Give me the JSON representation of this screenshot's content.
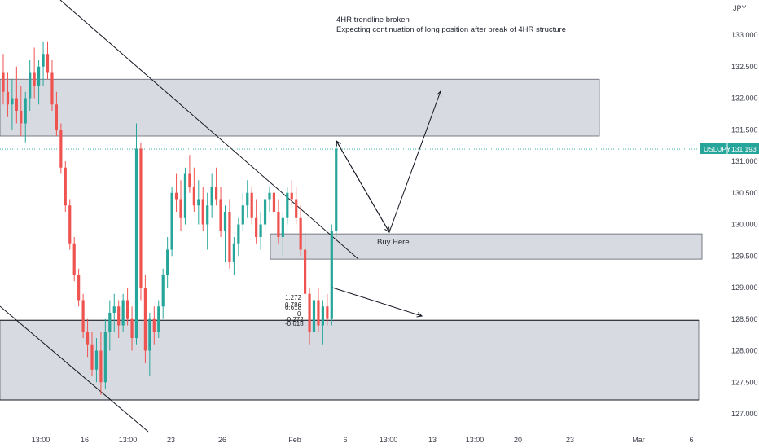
{
  "chart_data": {
    "type": "candlestick",
    "symbol": "USDJPY",
    "currency": "JPY",
    "last_price": "131.193",
    "colors": {
      "up": "#26a69a",
      "down": "#ef5350",
      "zone": "#d1d4dc",
      "price_line": "#26a69a"
    },
    "y_ticks": [
      "133.000",
      "132.500",
      "132.000",
      "131.500",
      "131.000",
      "130.500",
      "130.000",
      "129.500",
      "129.000",
      "128.500",
      "128.000",
      "127.500",
      "127.000"
    ],
    "x_ticks": [
      "13:00",
      "16",
      "13:00",
      "23",
      "26",
      "Feb",
      "6",
      "13:00",
      "13",
      "13:00",
      "20",
      "23",
      "Mar",
      "6"
    ],
    "annotations": {
      "line1": "4HR trendline broken",
      "line2": "Expecting continuation of long position after break of 4HR structure",
      "buy_label": "Buy Here"
    },
    "fib_labels": [
      "1.272",
      "0.786",
      "0.618",
      "0",
      "-0.272",
      "-0.618"
    ],
    "zones": [
      {
        "name": "resistance-zone",
        "from": 131.4,
        "to": 132.3
      },
      {
        "name": "buy-zone",
        "from": 129.45,
        "to": 129.85
      },
      {
        "name": "support-zone",
        "from": 127.22,
        "to": 128.48
      }
    ],
    "candles": [
      [
        132.4,
        132.7,
        131.9,
        132.1
      ],
      [
        132.1,
        132.4,
        131.7,
        131.9
      ],
      [
        131.9,
        132.3,
        131.5,
        132.0
      ],
      [
        132.0,
        132.5,
        131.6,
        131.8
      ],
      [
        131.8,
        132.2,
        131.4,
        131.6
      ],
      [
        131.6,
        132.1,
        131.3,
        132.0
      ],
      [
        132.0,
        132.6,
        131.8,
        132.4
      ],
      [
        132.4,
        132.8,
        132.0,
        132.2
      ],
      [
        132.2,
        132.6,
        131.9,
        132.5
      ],
      [
        132.5,
        132.9,
        132.2,
        132.7
      ],
      [
        132.7,
        132.9,
        132.3,
        132.4
      ],
      [
        132.4,
        132.6,
        131.8,
        131.9
      ],
      [
        131.9,
        132.1,
        131.4,
        131.5
      ],
      [
        131.5,
        131.6,
        130.8,
        130.9
      ],
      [
        130.9,
        131.0,
        130.2,
        130.3
      ],
      [
        130.3,
        130.4,
        129.6,
        129.7
      ],
      [
        129.7,
        129.8,
        129.1,
        129.2
      ],
      [
        129.2,
        129.3,
        128.7,
        128.8
      ],
      [
        128.8,
        128.9,
        128.2,
        128.3
      ],
      [
        128.3,
        128.5,
        127.9,
        128.1
      ],
      [
        128.1,
        128.3,
        127.6,
        127.7
      ],
      [
        127.7,
        128.2,
        127.5,
        128.0
      ],
      [
        128.0,
        128.3,
        127.3,
        127.5
      ],
      [
        127.5,
        128.5,
        127.4,
        128.3
      ],
      [
        128.3,
        128.8,
        128.0,
        128.6
      ],
      [
        128.6,
        128.9,
        128.3,
        128.7
      ],
      [
        128.7,
        128.8,
        128.2,
        128.4
      ],
      [
        128.4,
        128.9,
        128.3,
        128.8
      ],
      [
        128.8,
        129.0,
        128.4,
        128.5
      ],
      [
        128.5,
        128.7,
        128.0,
        128.2
      ],
      [
        128.2,
        131.6,
        128.1,
        131.2
      ],
      [
        131.2,
        131.3,
        128.8,
        129.0
      ],
      [
        129.0,
        129.2,
        127.8,
        128.0
      ],
      [
        128.0,
        128.6,
        127.6,
        128.5
      ],
      [
        128.5,
        128.7,
        128.1,
        128.3
      ],
      [
        128.3,
        128.8,
        128.2,
        128.7
      ],
      [
        128.7,
        129.3,
        128.5,
        129.2
      ],
      [
        129.2,
        129.8,
        129.0,
        129.6
      ],
      [
        129.6,
        130.6,
        129.5,
        130.5
      ],
      [
        130.5,
        130.8,
        130.2,
        130.4
      ],
      [
        130.4,
        130.7,
        129.9,
        130.1
      ],
      [
        130.1,
        130.9,
        130.0,
        130.8
      ],
      [
        130.8,
        131.1,
        130.5,
        130.6
      ],
      [
        130.6,
        130.9,
        130.2,
        130.3
      ],
      [
        130.3,
        130.7,
        130.0,
        130.4
      ],
      [
        130.4,
        130.6,
        129.9,
        130.0
      ],
      [
        130.0,
        130.5,
        129.6,
        130.3
      ],
      [
        130.3,
        130.8,
        130.1,
        130.6
      ],
      [
        130.6,
        130.9,
        130.3,
        130.4
      ],
      [
        130.4,
        130.6,
        129.8,
        129.9
      ],
      [
        129.9,
        130.3,
        129.4,
        130.2
      ],
      [
        130.2,
        130.4,
        129.3,
        129.4
      ],
      [
        129.4,
        129.8,
        129.2,
        129.7
      ],
      [
        129.7,
        130.1,
        129.5,
        130.0
      ],
      [
        130.0,
        130.5,
        129.9,
        130.3
      ],
      [
        130.3,
        130.7,
        130.1,
        130.5
      ],
      [
        130.5,
        130.6,
        130.0,
        130.1
      ],
      [
        130.1,
        130.4,
        129.7,
        129.8
      ],
      [
        129.8,
        130.2,
        129.6,
        130.0
      ],
      [
        130.0,
        130.5,
        129.9,
        130.4
      ],
      [
        130.4,
        130.6,
        130.2,
        130.5
      ],
      [
        130.5,
        130.7,
        130.1,
        130.2
      ],
      [
        130.2,
        130.4,
        129.7,
        129.8
      ],
      [
        129.8,
        130.2,
        129.5,
        130.1
      ],
      [
        130.1,
        130.6,
        130.0,
        130.5
      ],
      [
        130.5,
        130.7,
        130.3,
        130.4
      ],
      [
        130.4,
        130.6,
        130.0,
        130.1
      ],
      [
        130.1,
        130.3,
        129.5,
        129.6
      ],
      [
        129.6,
        129.9,
        128.8,
        128.9
      ],
      [
        128.9,
        129.0,
        128.1,
        128.3
      ],
      [
        128.3,
        128.9,
        128.2,
        128.8
      ],
      [
        128.8,
        129.0,
        128.3,
        128.4
      ],
      [
        128.4,
        128.8,
        128.1,
        128.7
      ],
      [
        128.7,
        128.9,
        128.4,
        128.5
      ],
      [
        128.5,
        130.0,
        128.4,
        129.9
      ],
      [
        129.9,
        131.3,
        129.8,
        131.2
      ]
    ]
  }
}
